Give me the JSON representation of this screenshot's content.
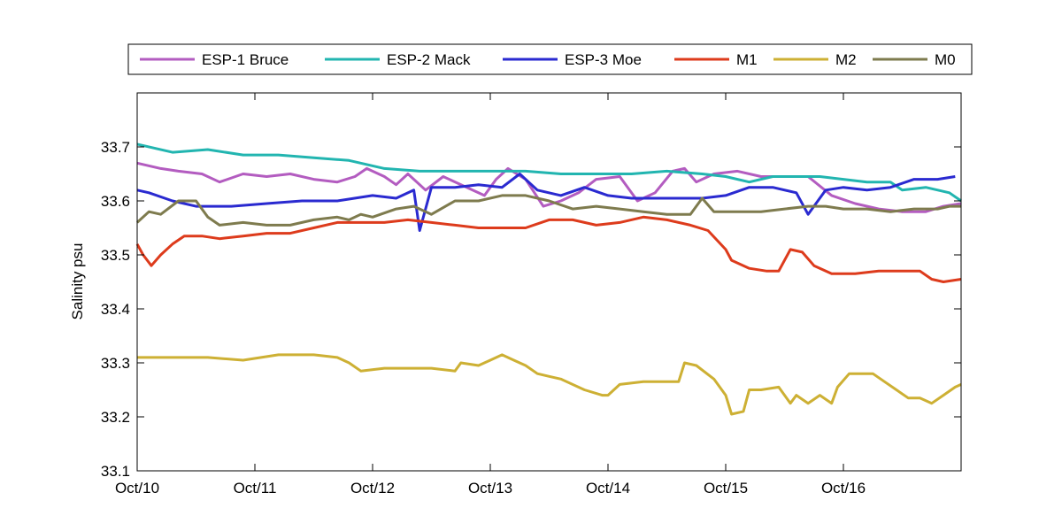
{
  "chart_data": {
    "type": "line",
    "title": "",
    "xlabel": "",
    "ylabel": "Salinity psu",
    "xlim": [
      0,
      7
    ],
    "ylim": [
      33.1,
      33.8
    ],
    "x_ticks": [
      0,
      1,
      2,
      3,
      4,
      5,
      6
    ],
    "x_tick_labels": [
      "Oct/10",
      "Oct/11",
      "Oct/12",
      "Oct/13",
      "Oct/14",
      "Oct/15",
      "Oct/16"
    ],
    "y_ticks": [
      33.1,
      33.2,
      33.3,
      33.4,
      33.5,
      33.6,
      33.7
    ],
    "y_tick_labels": [
      "33.1",
      "33.2",
      "33.3",
      "33.4",
      "33.5",
      "33.6",
      "33.7"
    ],
    "grid": false,
    "legend_position": "top-outside",
    "series": [
      {
        "name": "ESP-1 Bruce",
        "color": "#b35cc0",
        "x": [
          0,
          0.2,
          0.35,
          0.55,
          0.7,
          0.9,
          1.1,
          1.3,
          1.5,
          1.7,
          1.85,
          1.95,
          2.1,
          2.2,
          2.3,
          2.45,
          2.6,
          2.8,
          2.95,
          3.05,
          3.15,
          3.3,
          3.45,
          3.6,
          3.75,
          3.9,
          4.1,
          4.25,
          4.4,
          4.55,
          4.65,
          4.75,
          4.9,
          5.1,
          5.3,
          5.5,
          5.7,
          5.9,
          6.1,
          6.3,
          6.5,
          6.7,
          6.85,
          7.0
        ],
        "y": [
          33.67,
          33.66,
          33.655,
          33.65,
          33.635,
          33.65,
          33.645,
          33.65,
          33.64,
          33.635,
          33.645,
          33.66,
          33.645,
          33.63,
          33.65,
          33.62,
          33.645,
          33.625,
          33.61,
          33.64,
          33.66,
          33.64,
          33.59,
          33.6,
          33.615,
          33.64,
          33.645,
          33.6,
          33.615,
          33.655,
          33.66,
          33.635,
          33.65,
          33.655,
          33.645,
          33.645,
          33.645,
          33.61,
          33.595,
          33.585,
          33.58,
          33.58,
          33.59,
          33.595
        ]
      },
      {
        "name": "ESP-2 Mack",
        "color": "#22b5b0",
        "x": [
          0,
          0.3,
          0.6,
          0.9,
          1.2,
          1.5,
          1.8,
          2.1,
          2.4,
          2.7,
          3.0,
          3.3,
          3.6,
          3.9,
          4.2,
          4.5,
          4.8,
          5.0,
          5.2,
          5.4,
          5.6,
          5.8,
          6.0,
          6.2,
          6.4,
          6.5,
          6.7,
          6.9,
          7.0
        ],
        "y": [
          33.705,
          33.69,
          33.695,
          33.685,
          33.685,
          33.68,
          33.675,
          33.66,
          33.655,
          33.655,
          33.655,
          33.655,
          33.65,
          33.65,
          33.65,
          33.655,
          33.65,
          33.645,
          33.635,
          33.645,
          33.645,
          33.645,
          33.64,
          33.635,
          33.635,
          33.62,
          33.625,
          33.615,
          33.6
        ]
      },
      {
        "name": "ESP-3 Moe",
        "color": "#2a2ad0",
        "x": [
          0,
          0.1,
          0.3,
          0.5,
          0.8,
          1.1,
          1.4,
          1.7,
          2.0,
          2.2,
          2.35,
          2.4,
          2.5,
          2.7,
          2.9,
          3.1,
          3.25,
          3.4,
          3.6,
          3.8,
          4.0,
          4.2,
          4.5,
          4.8,
          5.0,
          5.2,
          5.4,
          5.6,
          5.7,
          5.85,
          6.0,
          6.2,
          6.4,
          6.6,
          6.8,
          6.95
        ],
        "y": [
          33.62,
          33.615,
          33.6,
          33.59,
          33.59,
          33.595,
          33.6,
          33.6,
          33.61,
          33.605,
          33.62,
          33.545,
          33.625,
          33.625,
          33.63,
          33.625,
          33.65,
          33.62,
          33.61,
          33.625,
          33.61,
          33.605,
          33.605,
          33.605,
          33.61,
          33.625,
          33.625,
          33.615,
          33.575,
          33.62,
          33.625,
          33.62,
          33.625,
          33.64,
          33.64,
          33.645
        ]
      },
      {
        "name": "M1",
        "color": "#dd3b1c",
        "x": [
          0,
          0.05,
          0.12,
          0.2,
          0.3,
          0.4,
          0.55,
          0.7,
          0.9,
          1.1,
          1.3,
          1.5,
          1.7,
          1.9,
          2.1,
          2.3,
          2.5,
          2.7,
          2.9,
          3.1,
          3.3,
          3.5,
          3.7,
          3.9,
          4.1,
          4.3,
          4.5,
          4.7,
          4.85,
          5.0,
          5.05,
          5.2,
          5.35,
          5.45,
          5.55,
          5.65,
          5.75,
          5.9,
          6.1,
          6.3,
          6.5,
          6.65,
          6.75,
          6.85,
          7.0
        ],
        "y": [
          33.52,
          33.5,
          33.48,
          33.5,
          33.52,
          33.535,
          33.535,
          33.53,
          33.535,
          33.54,
          33.54,
          33.55,
          33.56,
          33.56,
          33.56,
          33.565,
          33.56,
          33.555,
          33.55,
          33.55,
          33.55,
          33.565,
          33.565,
          33.555,
          33.56,
          33.57,
          33.565,
          33.555,
          33.545,
          33.51,
          33.49,
          33.475,
          33.47,
          33.47,
          33.51,
          33.505,
          33.48,
          33.465,
          33.465,
          33.47,
          33.47,
          33.47,
          33.455,
          33.45,
          33.455
        ]
      },
      {
        "name": "M2",
        "color": "#cdb034",
        "x": [
          0,
          0.3,
          0.6,
          0.9,
          1.2,
          1.5,
          1.7,
          1.8,
          1.9,
          2.1,
          2.3,
          2.5,
          2.7,
          2.75,
          2.9,
          3.0,
          3.1,
          3.2,
          3.3,
          3.4,
          3.5,
          3.6,
          3.8,
          3.95,
          4.0,
          4.1,
          4.3,
          4.5,
          4.6,
          4.65,
          4.75,
          4.9,
          5.0,
          5.05,
          5.15,
          5.2,
          5.3,
          5.45,
          5.55,
          5.6,
          5.7,
          5.8,
          5.9,
          5.95,
          6.05,
          6.15,
          6.25,
          6.35,
          6.45,
          6.55,
          6.65,
          6.75,
          6.85,
          6.95,
          7.0
        ],
        "y": [
          33.31,
          33.31,
          33.31,
          33.305,
          33.315,
          33.315,
          33.31,
          33.3,
          33.285,
          33.29,
          33.29,
          33.29,
          33.285,
          33.3,
          33.295,
          33.305,
          33.315,
          33.305,
          33.295,
          33.28,
          33.275,
          33.27,
          33.25,
          33.24,
          33.24,
          33.26,
          33.265,
          33.265,
          33.265,
          33.3,
          33.295,
          33.27,
          33.24,
          33.205,
          33.21,
          33.25,
          33.25,
          33.255,
          33.225,
          33.24,
          33.225,
          33.24,
          33.225,
          33.255,
          33.28,
          33.28,
          33.28,
          33.265,
          33.25,
          33.235,
          33.235,
          33.225,
          33.24,
          33.255,
          33.26
        ]
      },
      {
        "name": "M0",
        "color": "#7e7b4e",
        "x": [
          0,
          0.1,
          0.2,
          0.35,
          0.5,
          0.6,
          0.7,
          0.9,
          1.1,
          1.3,
          1.5,
          1.7,
          1.8,
          1.9,
          2.0,
          2.2,
          2.35,
          2.5,
          2.7,
          2.9,
          3.1,
          3.3,
          3.5,
          3.7,
          3.9,
          4.1,
          4.3,
          4.5,
          4.7,
          4.8,
          4.9,
          5.1,
          5.3,
          5.5,
          5.7,
          5.85,
          6.0,
          6.2,
          6.4,
          6.6,
          6.8,
          6.9,
          7.0
        ],
        "y": [
          33.56,
          33.58,
          33.575,
          33.6,
          33.6,
          33.57,
          33.555,
          33.56,
          33.555,
          33.555,
          33.565,
          33.57,
          33.565,
          33.575,
          33.57,
          33.585,
          33.59,
          33.575,
          33.6,
          33.6,
          33.61,
          33.61,
          33.6,
          33.585,
          33.59,
          33.585,
          33.58,
          33.575,
          33.575,
          33.605,
          33.58,
          33.58,
          33.58,
          33.585,
          33.59,
          33.59,
          33.585,
          33.585,
          33.58,
          33.585,
          33.585,
          33.59,
          33.59
        ]
      }
    ]
  }
}
